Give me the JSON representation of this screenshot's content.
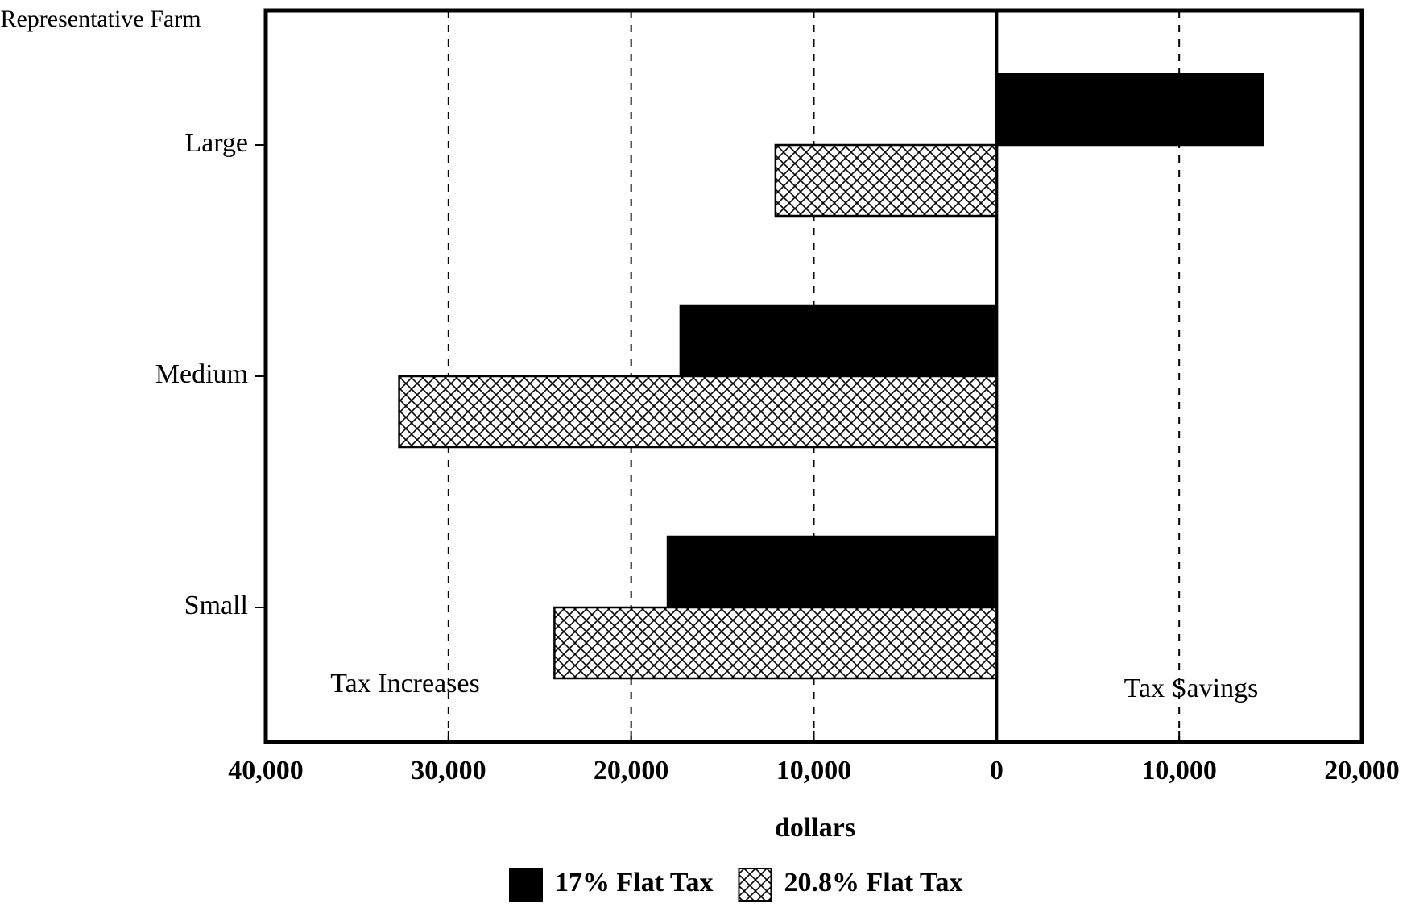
{
  "chart_data": {
    "type": "hbar",
    "ylabel": "Representative Farm",
    "xlabel": "dollars",
    "annotations": [
      "Tax Increases",
      "Tax Savings"
    ],
    "categories": [
      "Large",
      "Medium",
      "Small"
    ],
    "series": [
      {
        "name": "17% Flat Tax",
        "color": "#000000",
        "values": [
          14600,
          -17300,
          -18000
        ]
      },
      {
        "name": "20.8% Flat Tax",
        "color": "#000000",
        "hatch": "crosshatch",
        "values": [
          -12100,
          -32700,
          -24200
        ]
      }
    ],
    "xlim": [
      -40000,
      20000
    ],
    "xticks": [
      {
        "value": -40000,
        "label": "40,000"
      },
      {
        "value": -30000,
        "label": "30,000"
      },
      {
        "value": -20000,
        "label": "20,000"
      },
      {
        "value": -10000,
        "label": "10,000"
      },
      0,
      {
        "value": 10000,
        "label": "10,000"
      },
      {
        "value": 20000,
        "label": "20,000"
      }
    ],
    "grid": true,
    "legend": "bottom"
  }
}
